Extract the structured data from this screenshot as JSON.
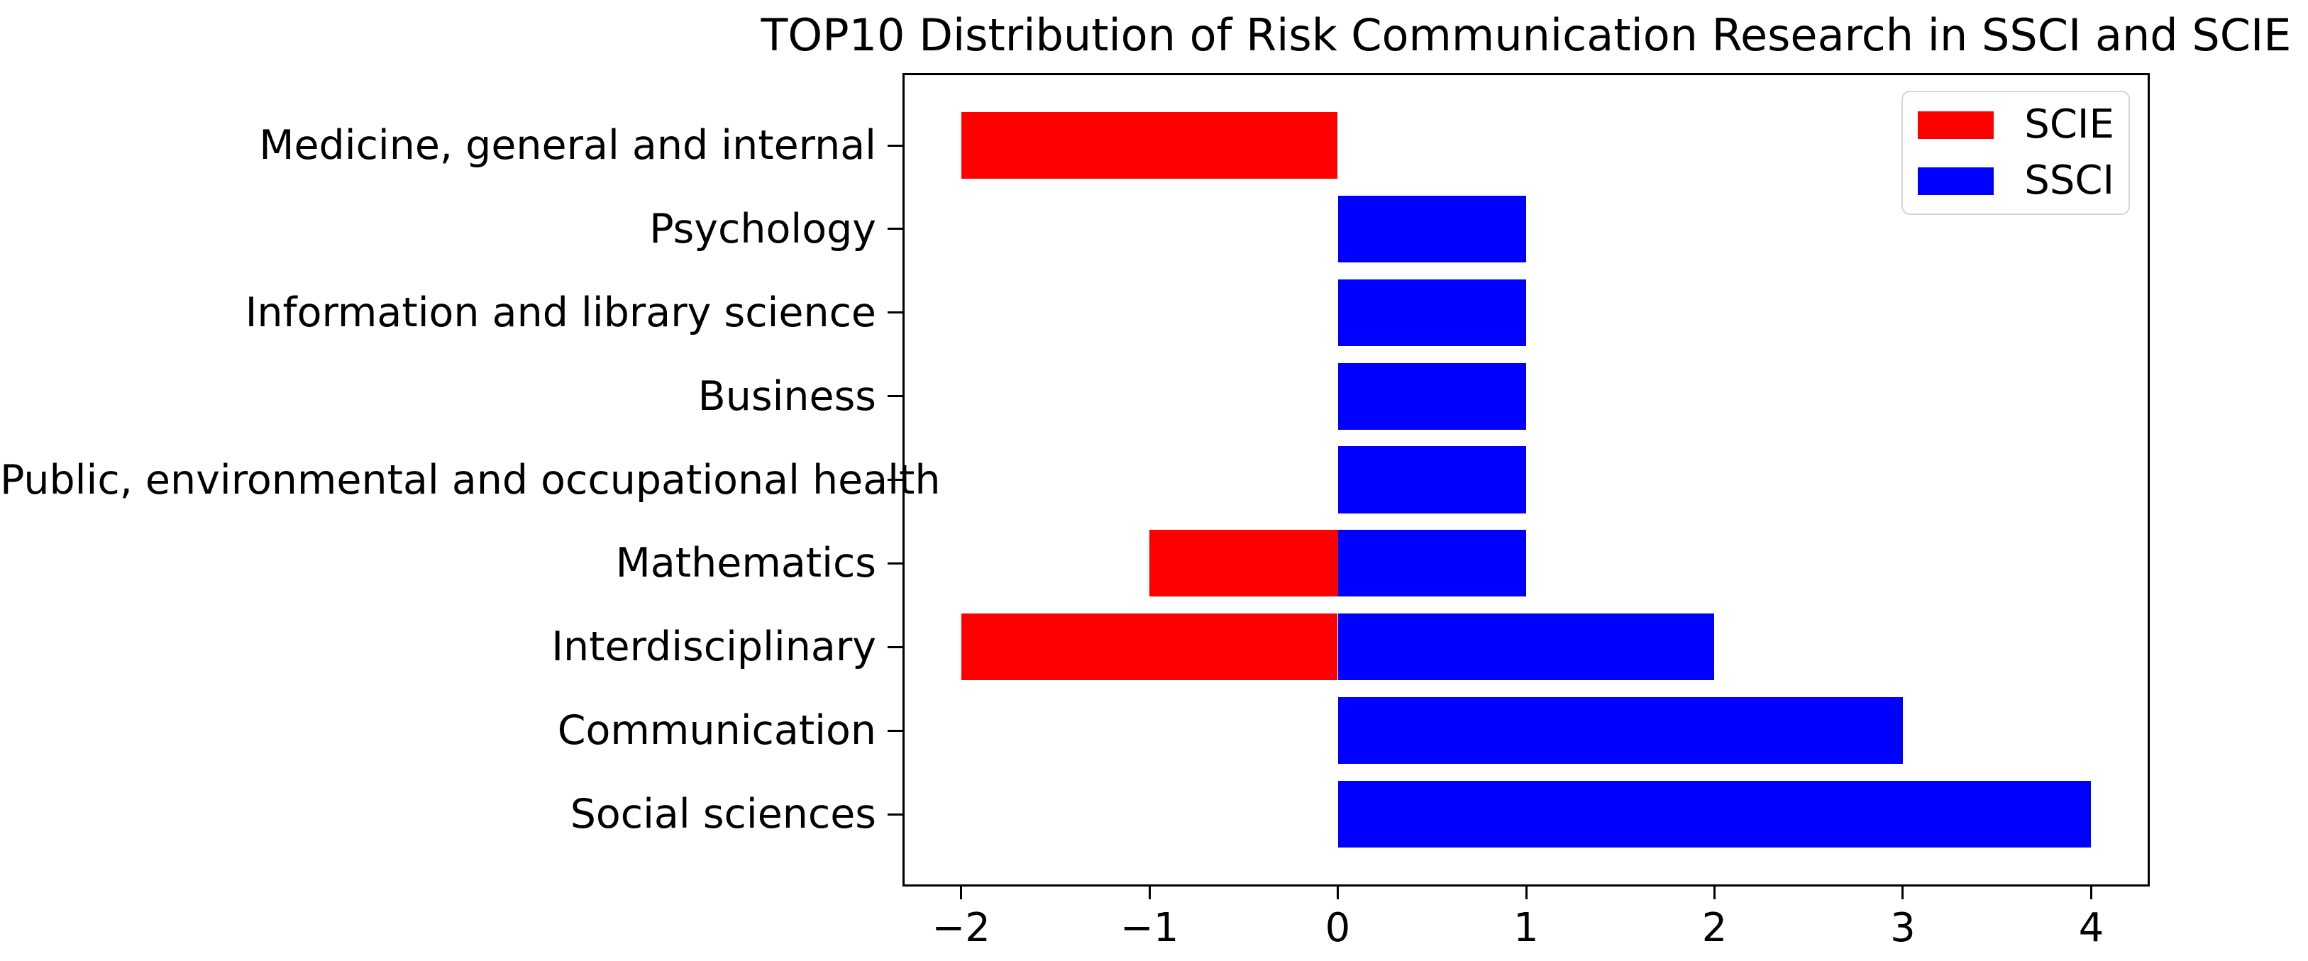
{
  "chart_data": {
    "type": "bar",
    "orientation": "horizontal",
    "title": "TOP10 Distribution of Risk Communication Research in SSCI and SCIE",
    "categories": [
      "Medicine, general and internal",
      "Psychology",
      "Information and library science",
      "Business",
      "Public, environmental and occupational health",
      "Mathematics",
      "Interdisciplinary",
      "Communication",
      "Social sciences"
    ],
    "series": [
      {
        "name": "SCIE",
        "color": "#ff0000",
        "values": [
          -2,
          0,
          0,
          0,
          0,
          -1,
          -2,
          0,
          0
        ]
      },
      {
        "name": "SSCI",
        "color": "#0000ff",
        "values": [
          0,
          1,
          1,
          1,
          1,
          1,
          2,
          3,
          4
        ]
      }
    ],
    "xlabel": "",
    "ylabel": "",
    "xlim": [
      -2.3,
      4.3
    ],
    "x_ticks": [
      {
        "value": -2,
        "label": "−2"
      },
      {
        "value": -1,
        "label": "−1"
      },
      {
        "value": 0,
        "label": "0"
      },
      {
        "value": 1,
        "label": "1"
      },
      {
        "value": 2,
        "label": "2"
      },
      {
        "value": 3,
        "label": "3"
      },
      {
        "value": 4,
        "label": "4"
      }
    ],
    "grid": false,
    "legend_position": "upper right",
    "axis_color": "#000000",
    "legend_border_color": "#d5d5d5",
    "bar_height_fraction": 0.8
  }
}
